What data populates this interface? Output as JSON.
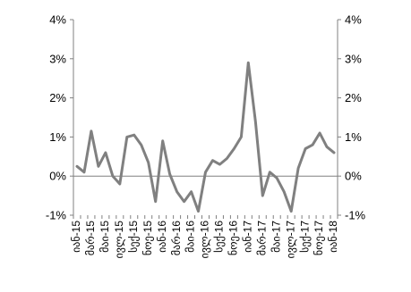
{
  "chart_data": {
    "type": "line",
    "title": "",
    "xlabel": "",
    "ylabel": "",
    "ylim": [
      -1,
      4
    ],
    "y_ticks": [
      "4%",
      "3%",
      "2%",
      "1%",
      "0%",
      "-1%"
    ],
    "y_tick_values": [
      4,
      3,
      2,
      1,
      0,
      -1
    ],
    "y_right_ticks": [
      "4%",
      "3%",
      "2%",
      "1%",
      "0%",
      "-1%"
    ],
    "grid": false,
    "legend": "none",
    "x_labels": [
      "იან-15",
      "მარ-15",
      "მაი-15",
      "ივლ-15",
      "სექ-15",
      "ნოე-15",
      "იან-16",
      "მარ-16",
      "მაი-16",
      "ივლ-16",
      "სექ-16",
      "ნოე-16",
      "იან-17",
      "მარ-17",
      "მაი-17",
      "ივლ-17",
      "სექ-17",
      "ნოე-17",
      "იან-18"
    ],
    "x": [
      "იან-15",
      "თებ-15",
      "მარ-15",
      "აპრ-15",
      "მაი-15",
      "ივნ-15",
      "ივლ-15",
      "აგვ-15",
      "სექ-15",
      "ოქტ-15",
      "ნოე-15",
      "დეკ-15",
      "იან-16",
      "თებ-16",
      "მარ-16",
      "აპრ-16",
      "მაი-16",
      "ივნ-16",
      "ივლ-16",
      "აგვ-16",
      "სექ-16",
      "ოქტ-16",
      "ნოე-16",
      "დეკ-16",
      "იან-17",
      "თებ-17",
      "მარ-17",
      "აპრ-17",
      "მაი-17",
      "ივნ-17",
      "ივლ-17",
      "აგვ-17",
      "სექ-17",
      "ოქტ-17",
      "ნოე-17",
      "დეკ-17",
      "იან-18"
    ],
    "series": [
      {
        "values": [
          0.25,
          0.1,
          1.15,
          0.25,
          0.6,
          0.0,
          -0.2,
          1.0,
          1.05,
          0.8,
          0.35,
          -0.65,
          0.9,
          0.05,
          -0.4,
          -0.65,
          -0.4,
          -0.9,
          0.1,
          0.4,
          0.3,
          0.45,
          0.7,
          1.0,
          2.9,
          1.4,
          -0.5,
          0.1,
          -0.05,
          -0.4,
          -0.9,
          0.2,
          0.7,
          0.8,
          1.1,
          0.75,
          0.6
        ],
        "color": "#808080"
      }
    ]
  }
}
